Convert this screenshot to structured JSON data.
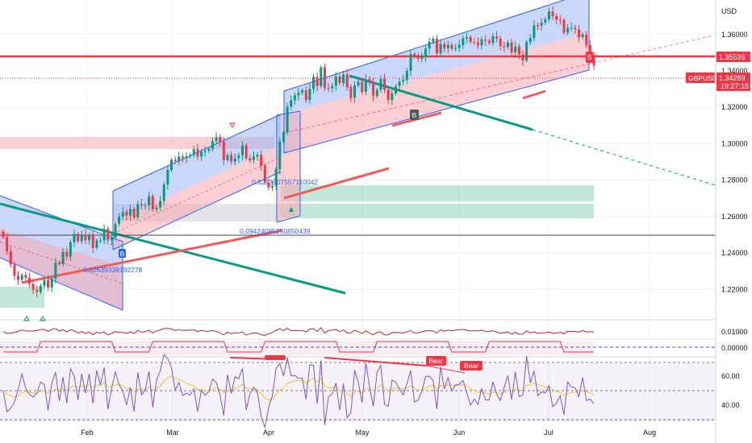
{
  "chart_data": {
    "type": "candlestick",
    "symbol": "GBPUSD",
    "currency": "USD",
    "current_price": "1.34289",
    "countdown": "19:27:15",
    "level_price": "1.35536",
    "price_ticks": [
      "1.36000",
      "1.34000",
      "1.32000",
      "1.30000",
      "1.28000",
      "1.26000",
      "1.24000",
      "1.22000"
    ],
    "main_ylim": [
      1.2034,
      1.3789
    ],
    "date_ticks": [
      "Feb",
      "Mar",
      "Apr",
      "May",
      "Jun",
      "Jul",
      "Aug"
    ],
    "indicator1_ticks": [
      "0.01000",
      "0.00000"
    ],
    "rsi_ticks": [
      "60.00",
      "40.00"
    ],
    "annotations": {
      "fib_labels": [
        "0.8273907557110042",
        "0.0942408525085043​9",
        "0.8263933919227​8"
      ],
      "buy_marker": "B",
      "sell_marker": "S",
      "bear_labels": [
        "Bear",
        "Bear"
      ]
    },
    "close": [
      1.2488,
      1.241,
      1.2337,
      1.2276,
      1.2254,
      1.228,
      1.2264,
      1.2232,
      1.2199,
      1.2187,
      1.222,
      1.2253,
      1.221,
      1.226,
      1.2347,
      1.234,
      1.2406,
      1.2381,
      1.246,
      1.2505,
      1.2465,
      1.2502,
      1.247,
      1.2497,
      1.2429,
      1.247,
      1.247,
      1.2533,
      1.247,
      1.2485,
      1.256,
      1.26,
      1.2625,
      1.2606,
      1.2642,
      1.2596,
      1.2669,
      1.2662,
      1.2662,
      1.2713,
      1.264,
      1.265,
      1.2686,
      1.2776,
      1.2856,
      1.2912,
      1.2904,
      1.293,
      1.2922,
      1.293,
      1.2938,
      1.297,
      1.293,
      1.2956,
      1.2962,
      1.2972,
      1.3015,
      1.3037,
      1.3011,
      1.2911,
      1.2938,
      1.2902,
      1.292,
      1.2936,
      1.2991,
      1.292,
      1.291,
      1.293,
      1.294,
      1.288,
      1.2788,
      1.276,
      1.2769,
      1.286,
      1.3012,
      1.3063,
      1.3204,
      1.3238,
      1.3266,
      1.328,
      1.3293,
      1.324,
      1.3301,
      1.3367,
      1.3317,
      1.342,
      1.3306,
      1.3304,
      1.3318,
      1.3369,
      1.3333,
      1.338,
      1.3311,
      1.3252,
      1.332,
      1.334,
      1.3286,
      1.3354,
      1.334,
      1.3262,
      1.3295,
      1.3356,
      1.3297,
      1.324,
      1.3277,
      1.3316,
      1.3341,
      1.3351,
      1.34,
      1.3492,
      1.3479,
      1.3466,
      1.3475,
      1.3522,
      1.356,
      1.3577,
      1.3496,
      1.3547,
      1.3525,
      1.3542,
      1.3521,
      1.3526,
      1.3542,
      1.3579,
      1.3586,
      1.3559,
      1.3557,
      1.354,
      1.3573,
      1.3566,
      1.3553,
      1.359,
      1.3578,
      1.3537,
      1.3531,
      1.3556,
      1.3501,
      1.3534,
      1.349,
      1.3457,
      1.3558,
      1.358,
      1.365,
      1.3648,
      1.3665,
      1.3683,
      1.3726,
      1.37,
      1.3681,
      1.368,
      1.361,
      1.3636,
      1.3637,
      1.3628,
      1.3585,
      1.36,
      1.3541,
      1.349,
      1.3429
    ]
  }
}
